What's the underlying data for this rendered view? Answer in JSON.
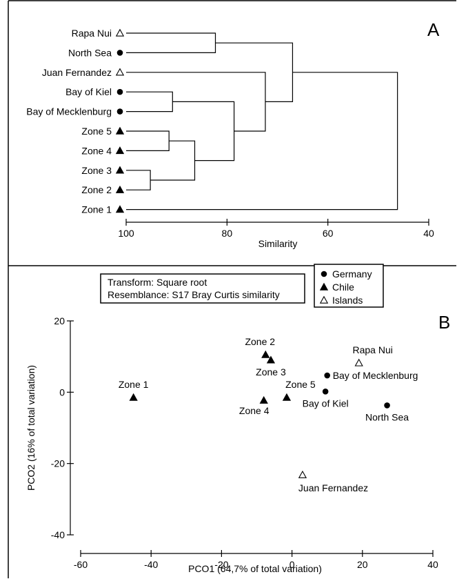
{
  "chart_data": [
    {
      "type": "dendrogram",
      "panel_label": "A",
      "xlabel": "Similarity",
      "xlim": [
        100,
        40
      ],
      "xticks": [
        100,
        80,
        60,
        40
      ],
      "leaves": [
        {
          "label": "Rapa Nui",
          "group": "Islands"
        },
        {
          "label": "North Sea",
          "group": "Germany"
        },
        {
          "label": "Juan Fernandez",
          "group": "Islands"
        },
        {
          "label": "Bay of Kiel",
          "group": "Germany"
        },
        {
          "label": "Bay of Mecklenburg",
          "group": "Germany"
        },
        {
          "label": "Zone 5",
          "group": "Chile"
        },
        {
          "label": "Zone 4",
          "group": "Chile"
        },
        {
          "label": "Zone 3",
          "group": "Chile"
        },
        {
          "label": "Zone 2",
          "group": "Chile"
        },
        {
          "label": "Zone 1",
          "group": "Chile"
        }
      ],
      "merges": [
        {
          "a": 7,
          "b": 8,
          "similarity": 95.2
        },
        {
          "a": 5,
          "b": 6,
          "similarity": 91.5
        },
        {
          "a": 3,
          "b": 4,
          "similarity": 90.8
        },
        {
          "a": 0,
          "b": 1,
          "similarity": 82.3
        },
        {
          "a": 11,
          "b": 10,
          "similarity": 86.4
        },
        {
          "a": 12,
          "b": 14,
          "similarity": 78.6
        },
        {
          "a": 2,
          "b": 15,
          "similarity": 72.4
        },
        {
          "a": 13,
          "b": 16,
          "similarity": 67.0
        },
        {
          "a": 17,
          "b": 9,
          "similarity": 46.2
        }
      ]
    },
    {
      "type": "scatter",
      "panel_label": "B",
      "xlabel": "PCO1 (64,7% of total variation)",
      "ylabel": "PCO2 (16% of total variation)",
      "xlim": [
        -60,
        40
      ],
      "ylim": [
        -40,
        20
      ],
      "xticks": [
        -60,
        -40,
        -20,
        0,
        20,
        40
      ],
      "yticks": [
        20,
        0,
        -20,
        -40
      ],
      "points": [
        {
          "label": "Zone 1",
          "group": "Chile",
          "x": -45,
          "y": -1.5,
          "label_pos": "above"
        },
        {
          "label": "Zone 2",
          "group": "Chile",
          "x": -7.5,
          "y": 10.5,
          "label_pos": "above-left"
        },
        {
          "label": "Zone 3",
          "group": "Chile",
          "x": -6,
          "y": 9,
          "label_pos": "below"
        },
        {
          "label": "Zone 4",
          "group": "Chile",
          "x": -8,
          "y": -2.3,
          "label_pos": "below-left"
        },
        {
          "label": "Zone 5",
          "group": "Chile",
          "x": -1.5,
          "y": -1.5,
          "label_pos": "above-right"
        },
        {
          "label": "Bay of Kiel",
          "group": "Germany",
          "x": 9.5,
          "y": 0.2,
          "label_pos": "below"
        },
        {
          "label": "Bay of Mecklenburg",
          "group": "Germany",
          "x": 10,
          "y": 4.7,
          "label_pos": "right"
        },
        {
          "label": "North Sea",
          "group": "Germany",
          "x": 27,
          "y": -3.7,
          "label_pos": "below"
        },
        {
          "label": "Rapa Nui",
          "group": "Islands",
          "x": 19,
          "y": 8.2,
          "label_pos": "above-right"
        },
        {
          "label": "Juan Fernandez",
          "group": "Islands",
          "x": 3,
          "y": -23.2,
          "label_pos": "below-right"
        }
      ]
    }
  ],
  "transform_box": {
    "line1": "Transform: Square root",
    "line2": "Resemblance: S17 Bray Curtis similarity"
  },
  "legend": {
    "placement": "top-center",
    "entries": [
      {
        "label": "Germany",
        "marker": "filled-circle"
      },
      {
        "label": "Chile",
        "marker": "filled-triangle"
      },
      {
        "label": "Islands",
        "marker": "open-triangle"
      }
    ]
  }
}
